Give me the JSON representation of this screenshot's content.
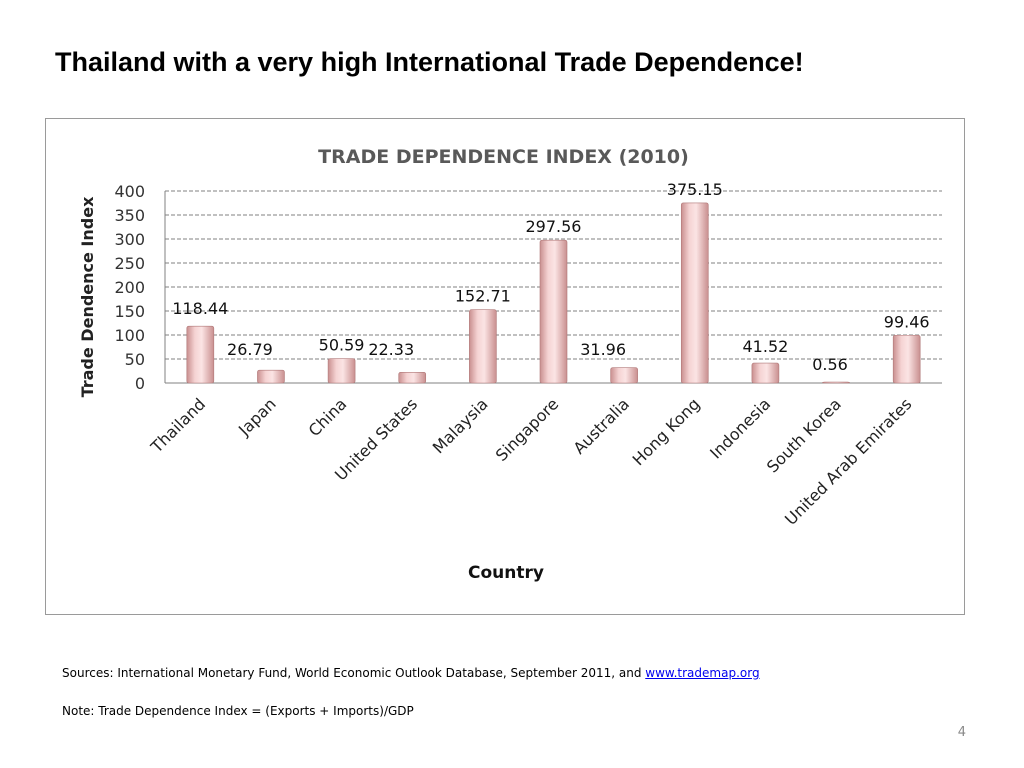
{
  "slide": {
    "title": "Thailand with a very high International Trade Dependence!",
    "page_number": "4"
  },
  "footer": {
    "sources_text": "Sources: International Monetary Fund, World Economic Outlook Database, September 2011, and ",
    "sources_link": "www.trademap.org",
    "note": "Note: Trade Dependence Index = (Exports + Imports)/GDP"
  },
  "colors": {
    "bar_fill": "#f2c4c4",
    "bar_edge": "#b07878",
    "title_color": "#595959",
    "grid": "#808080"
  },
  "chart_data": {
    "type": "bar",
    "title": "TRADE DEPENDENCE INDEX (2010)",
    "xlabel": "Country",
    "ylabel": "Trade Dendence Index",
    "categories": [
      "Thailand",
      "Japan",
      "China",
      "United States",
      "Malaysia",
      "Singapore",
      "Australia",
      "Hong Kong",
      "Indonesia",
      "South Korea",
      "United Arab Emirates"
    ],
    "values": [
      118.44,
      26.79,
      50.59,
      22.33,
      152.71,
      297.56,
      31.96,
      375.15,
      41.52,
      0.56,
      99.46
    ],
    "value_labels": [
      "118.44",
      "26.79",
      "50.59",
      "22.33",
      "152.71",
      "297.56",
      "31.96",
      "375.15",
      "41.52",
      "0.56",
      "99.46"
    ],
    "ylim": [
      0,
      400
    ],
    "yticks": [
      0,
      50,
      100,
      150,
      200,
      250,
      300,
      350,
      400
    ],
    "grid": true,
    "grid_style": "dashed",
    "legend": "none"
  }
}
